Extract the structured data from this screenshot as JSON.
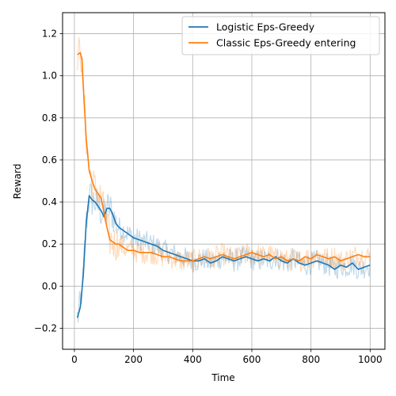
{
  "chart_data": {
    "type": "line",
    "title": "",
    "xlabel": "Time",
    "ylabel": "Reward",
    "xlim": [
      -40,
      1050
    ],
    "ylim": [
      -0.3,
      1.3
    ],
    "xticks": [
      0,
      200,
      400,
      600,
      800,
      1000
    ],
    "xtick_labels": [
      "0",
      "200",
      "400",
      "600",
      "800",
      "1000"
    ],
    "yticks": [
      -0.2,
      0.0,
      0.2,
      0.4,
      0.6,
      0.8,
      1.0,
      1.2
    ],
    "ytick_labels": [
      "−0.2",
      "0.0",
      "0.2",
      "0.4",
      "0.6",
      "0.8",
      "1.0",
      "1.2"
    ],
    "grid": true,
    "legend_position": "top-right",
    "series": [
      {
        "name": "Logistic Eps-Greedy",
        "color": "#1f77b4",
        "x": [
          10,
          20,
          30,
          40,
          50,
          60,
          70,
          80,
          90,
          100,
          110,
          120,
          130,
          140,
          150,
          160,
          170,
          180,
          190,
          200,
          220,
          240,
          260,
          280,
          300,
          320,
          340,
          360,
          380,
          400,
          420,
          440,
          460,
          480,
          500,
          520,
          540,
          560,
          580,
          600,
          620,
          640,
          660,
          680,
          700,
          720,
          740,
          760,
          780,
          800,
          820,
          840,
          860,
          880,
          900,
          920,
          940,
          960,
          980,
          1000
        ],
        "y": [
          -0.15,
          -0.1,
          0.05,
          0.3,
          0.43,
          0.41,
          0.4,
          0.38,
          0.36,
          0.33,
          0.37,
          0.37,
          0.34,
          0.3,
          0.28,
          0.27,
          0.26,
          0.25,
          0.24,
          0.23,
          0.22,
          0.21,
          0.2,
          0.19,
          0.17,
          0.16,
          0.15,
          0.14,
          0.13,
          0.12,
          0.12,
          0.13,
          0.11,
          0.12,
          0.14,
          0.13,
          0.12,
          0.13,
          0.14,
          0.13,
          0.12,
          0.13,
          0.12,
          0.14,
          0.12,
          0.11,
          0.13,
          0.11,
          0.1,
          0.11,
          0.12,
          0.11,
          0.1,
          0.08,
          0.1,
          0.09,
          0.11,
          0.08,
          0.09,
          0.1
        ]
      },
      {
        "name": "Classic Eps-Greedy entering",
        "color": "#ff7f0e",
        "x": [
          10,
          20,
          25,
          30,
          40,
          50,
          60,
          70,
          80,
          90,
          100,
          110,
          120,
          130,
          140,
          150,
          160,
          170,
          180,
          190,
          200,
          220,
          240,
          260,
          280,
          300,
          320,
          340,
          360,
          380,
          400,
          420,
          440,
          460,
          480,
          500,
          520,
          540,
          560,
          580,
          600,
          620,
          640,
          660,
          680,
          700,
          720,
          740,
          760,
          780,
          800,
          820,
          840,
          860,
          880,
          900,
          920,
          940,
          960,
          980,
          1000
        ],
        "y": [
          1.1,
          1.11,
          1.08,
          0.95,
          0.7,
          0.55,
          0.5,
          0.46,
          0.44,
          0.42,
          0.35,
          0.28,
          0.22,
          0.21,
          0.2,
          0.2,
          0.19,
          0.18,
          0.17,
          0.17,
          0.17,
          0.16,
          0.16,
          0.16,
          0.15,
          0.14,
          0.14,
          0.13,
          0.12,
          0.12,
          0.12,
          0.13,
          0.14,
          0.13,
          0.14,
          0.15,
          0.14,
          0.13,
          0.14,
          0.15,
          0.16,
          0.15,
          0.14,
          0.15,
          0.13,
          0.14,
          0.12,
          0.13,
          0.12,
          0.14,
          0.13,
          0.15,
          0.14,
          0.13,
          0.14,
          0.12,
          0.13,
          0.14,
          0.15,
          0.14,
          0.14
        ]
      }
    ]
  }
}
